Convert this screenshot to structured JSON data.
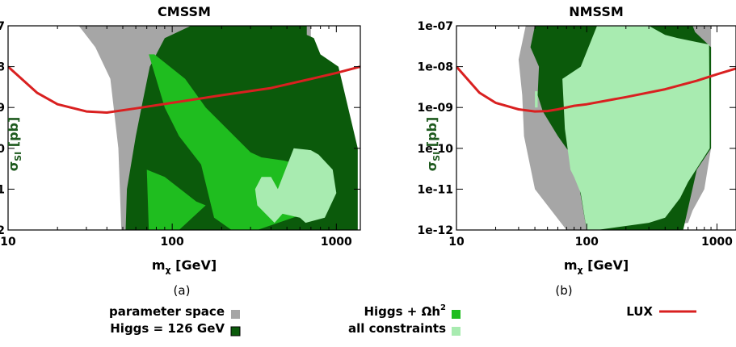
{
  "chart_data": [
    {
      "type": "area",
      "panel": "a",
      "title": "CMSSM",
      "caption": "(a)",
      "xlabel": "m",
      "xlabel_sub": "χ",
      "xlabel_unit": "[GeV]",
      "ylabel": "σ",
      "ylabel_sub": "SI",
      "ylabel_unit": "[pb]",
      "xscale": "log",
      "yscale": "log",
      "xlim": [
        10,
        1400
      ],
      "ylim": [
        1e-12,
        1e-07
      ],
      "xticks": [
        {
          "v": 10,
          "label": "10"
        },
        {
          "v": 100,
          "label": "100"
        },
        {
          "v": 1000,
          "label": "1000"
        }
      ],
      "yticks": [
        {
          "v": 1e-07,
          "label": "1e-07"
        },
        {
          "v": 1e-08,
          "label": "1e-08"
        },
        {
          "v": 1e-09,
          "label": "1e-09"
        },
        {
          "v": 1e-10,
          "label": "1e-10"
        },
        {
          "v": 1e-11,
          "label": "1e-11"
        },
        {
          "v": 1e-12,
          "label": "1e-12"
        }
      ],
      "regions": [
        {
          "name": "parameter space",
          "fill": "#a6a6a6",
          "polygons": [
            [
              [
                27,
                1e-07
              ],
              [
                700,
                1e-07
              ],
              [
                700,
                3e-09
              ],
              [
                420,
                2e-10
              ],
              [
                60,
                1e-12
              ],
              [
                49,
                1e-12
              ],
              [
                47,
                1e-10
              ],
              [
                42,
                5e-09
              ],
              [
                34,
                3e-08
              ],
              [
                27,
                1e-07
              ]
            ]
          ]
        },
        {
          "name": "Higgs = 126 GeV",
          "fill": "#0b5a0b",
          "polygons": [
            [
              [
                90,
                5e-08
              ],
              [
                130,
                1e-07
              ],
              [
                660,
                1e-07
              ],
              [
                660,
                6e-08
              ],
              [
                730,
                5e-08
              ],
              [
                800,
                2e-08
              ],
              [
                1030,
                1e-08
              ],
              [
                1350,
                1e-10
              ],
              [
                1350,
                1e-12
              ],
              [
                52,
                1e-12
              ],
              [
                53,
                1e-11
              ],
              [
                60,
                2e-10
              ],
              [
                65,
                1e-09
              ],
              [
                73,
                1e-08
              ],
              [
                90,
                5e-08
              ]
            ]
          ]
        },
        {
          "name": "Higgs + Ωh²",
          "fill": "#1fbd1f",
          "polygons": [
            [
              [
                72,
                2e-08
              ],
              [
                78,
                2e-08
              ],
              [
                120,
                5e-09
              ],
              [
                160,
                1e-09
              ],
              [
                300,
                8e-11
              ],
              [
                350,
                6e-11
              ],
              [
                480,
                5e-11
              ],
              [
                800,
                3e-11
              ],
              [
                900,
                1.5e-11
              ],
              [
                900,
                4e-12
              ],
              [
                330,
                1e-12
              ],
              [
                230,
                1e-12
              ],
              [
                180,
                2e-12
              ],
              [
                150,
                4e-11
              ],
              [
                110,
                2e-10
              ],
              [
                90,
                1e-09
              ],
              [
                72,
                2e-08
              ]
            ],
            [
              [
                70,
                3e-11
              ],
              [
                90,
                2e-11
              ],
              [
                140,
                5e-12
              ],
              [
                160,
                4e-12
              ],
              [
                110,
                1e-12
              ],
              [
                72,
                1e-12
              ],
              [
                70,
                3e-11
              ]
            ]
          ]
        },
        {
          "name": "all constraints",
          "fill": "#a8ebb0",
          "polygons": [
            [
              [
                550,
                1e-10
              ],
              [
                700,
                9e-11
              ],
              [
                780,
                7e-11
              ],
              [
                950,
                3e-11
              ],
              [
                1000,
                8e-12
              ],
              [
                850,
                2e-12
              ],
              [
                650,
                1.5e-12
              ],
              [
                600,
                2e-12
              ],
              [
                470,
                2.5e-12
              ],
              [
                420,
                1.5e-12
              ],
              [
                330,
                4e-12
              ],
              [
                320,
                1e-11
              ],
              [
                350,
                2e-11
              ],
              [
                400,
                2e-11
              ],
              [
                440,
                1e-11
              ],
              [
                550,
                1e-10
              ]
            ]
          ]
        }
      ],
      "series": [
        {
          "name": "LUX",
          "color": "#d92020",
          "x": [
            10,
            15,
            20,
            30,
            40,
            60,
            100,
            200,
            400,
            700,
            1000,
            1400
          ],
          "y": [
            1e-08,
            2.3e-09,
            1.2e-09,
            8e-10,
            7.5e-10,
            9.5e-10,
            1.3e-09,
            2e-09,
            3e-09,
            5e-09,
            7e-09,
            1e-08
          ]
        }
      ]
    },
    {
      "type": "area",
      "panel": "b",
      "title": "NMSSM",
      "caption": "(b)",
      "xlabel": "m",
      "xlabel_sub": "χ",
      "xlabel_unit": "[GeV]",
      "ylabel": "σ",
      "ylabel_sub": "SI",
      "ylabel_unit": "[pb]",
      "xscale": "log",
      "yscale": "log",
      "xlim": [
        10,
        1400
      ],
      "ylim": [
        1e-12,
        1e-07
      ],
      "xticks": [
        {
          "v": 10,
          "label": "10"
        },
        {
          "v": 100,
          "label": "100"
        },
        {
          "v": 1000,
          "label": "1000"
        }
      ],
      "yticks": [
        {
          "v": 1e-07,
          "label": "1e-07"
        },
        {
          "v": 1e-08,
          "label": "1e-08"
        },
        {
          "v": 1e-09,
          "label": "1e-09"
        },
        {
          "v": 1e-10,
          "label": "1e-10"
        },
        {
          "v": 1e-11,
          "label": "1e-11"
        },
        {
          "v": 1e-12,
          "label": "1e-12"
        }
      ],
      "regions": [
        {
          "name": "parameter space",
          "fill": "#a6a6a6",
          "polygons": [
            [
              [
                34,
                1e-07
              ],
              [
                900,
                1e-07
              ],
              [
                900,
                1e-10
              ],
              [
                800,
                1e-11
              ],
              [
                650,
                3e-12
              ],
              [
                600,
                1.5e-12
              ],
              [
                250,
                1e-12
              ],
              [
                70,
                1e-12
              ],
              [
                40,
                1e-11
              ],
              [
                33,
                2e-10
              ],
              [
                32,
                2e-09
              ],
              [
                30,
                1.5e-08
              ],
              [
                34,
                1e-07
              ]
            ]
          ]
        },
        {
          "name": "Higgs = 126 GeV",
          "fill": "#0b5a0b",
          "polygons": [
            [
              [
                40,
                1e-07
              ],
              [
                650,
                1e-07
              ],
              [
                680,
                7e-08
              ],
              [
                900,
                3e-08
              ],
              [
                900,
                1e-10
              ],
              [
                700,
                3e-11
              ],
              [
                550,
                1e-12
              ],
              [
                100,
                1e-12
              ],
              [
                80,
                6e-11
              ],
              [
                70,
                1e-10
              ],
              [
                60,
                2e-10
              ],
              [
                46,
                8e-10
              ],
              [
                42,
                2e-09
              ],
              [
                43,
                1e-08
              ],
              [
                37,
                3e-08
              ],
              [
                40,
                1e-07
              ]
            ]
          ]
        },
        {
          "name": "all constraints",
          "fill": "#a8ebb0",
          "polygons": [
            [
              [
                65,
                5e-09
              ],
              [
                90,
                1e-08
              ],
              [
                120,
                1e-07
              ],
              [
                300,
                1e-07
              ],
              [
                400,
                6e-08
              ],
              [
                500,
                5e-08
              ],
              [
                700,
                4e-08
              ],
              [
                870,
                3.5e-08
              ],
              [
                880,
                2e-10
              ],
              [
                880,
                1e-10
              ],
              [
                600,
                1.5e-11
              ],
              [
                520,
                6e-12
              ],
              [
                400,
                2e-12
              ],
              [
                300,
                1.5e-12
              ],
              [
                120,
                1e-12
              ],
              [
                100,
                1e-12
              ],
              [
                90,
                8e-12
              ],
              [
                80,
                2e-11
              ],
              [
                75,
                3e-11
              ],
              [
                68,
                3e-10
              ],
              [
                65,
                5e-09
              ]
            ],
            [
              [
                40,
                2.5e-09
              ],
              [
                42,
                2.5e-09
              ],
              [
                42,
                1e-09
              ],
              [
                40,
                1e-09
              ],
              [
                40,
                2.5e-09
              ]
            ]
          ]
        }
      ],
      "series": [
        {
          "name": "LUX",
          "color": "#d92020",
          "x": [
            10,
            15,
            20,
            30,
            40,
            50,
            60,
            80,
            100,
            200,
            400,
            700,
            1000,
            1400
          ],
          "y": [
            1e-08,
            2.3e-09,
            1.3e-09,
            9e-10,
            8e-10,
            8.2e-10,
            9e-10,
            1.1e-09,
            1.2e-09,
            1.8e-09,
            2.8e-09,
            4.5e-09,
            6.5e-09,
            9e-09
          ]
        }
      ]
    }
  ],
  "legend": [
    {
      "key": "parameter space",
      "label": "parameter space",
      "kind": "box",
      "color": "#a6a6a6"
    },
    {
      "key": "Higgs = 126 GeV",
      "label": "Higgs = 126 GeV",
      "kind": "box",
      "color": "#0b5a0b"
    },
    {
      "key": "Higgs + Ωh²",
      "label": "Higgs + Ωh",
      "label_sup": "2",
      "kind": "box",
      "color": "#1fbd1f"
    },
    {
      "key": "all constraints",
      "label": "all constraints",
      "kind": "box",
      "color": "#a8ebb0"
    },
    {
      "key": "LUX",
      "label": "LUX",
      "kind": "line",
      "color": "#d92020"
    }
  ]
}
